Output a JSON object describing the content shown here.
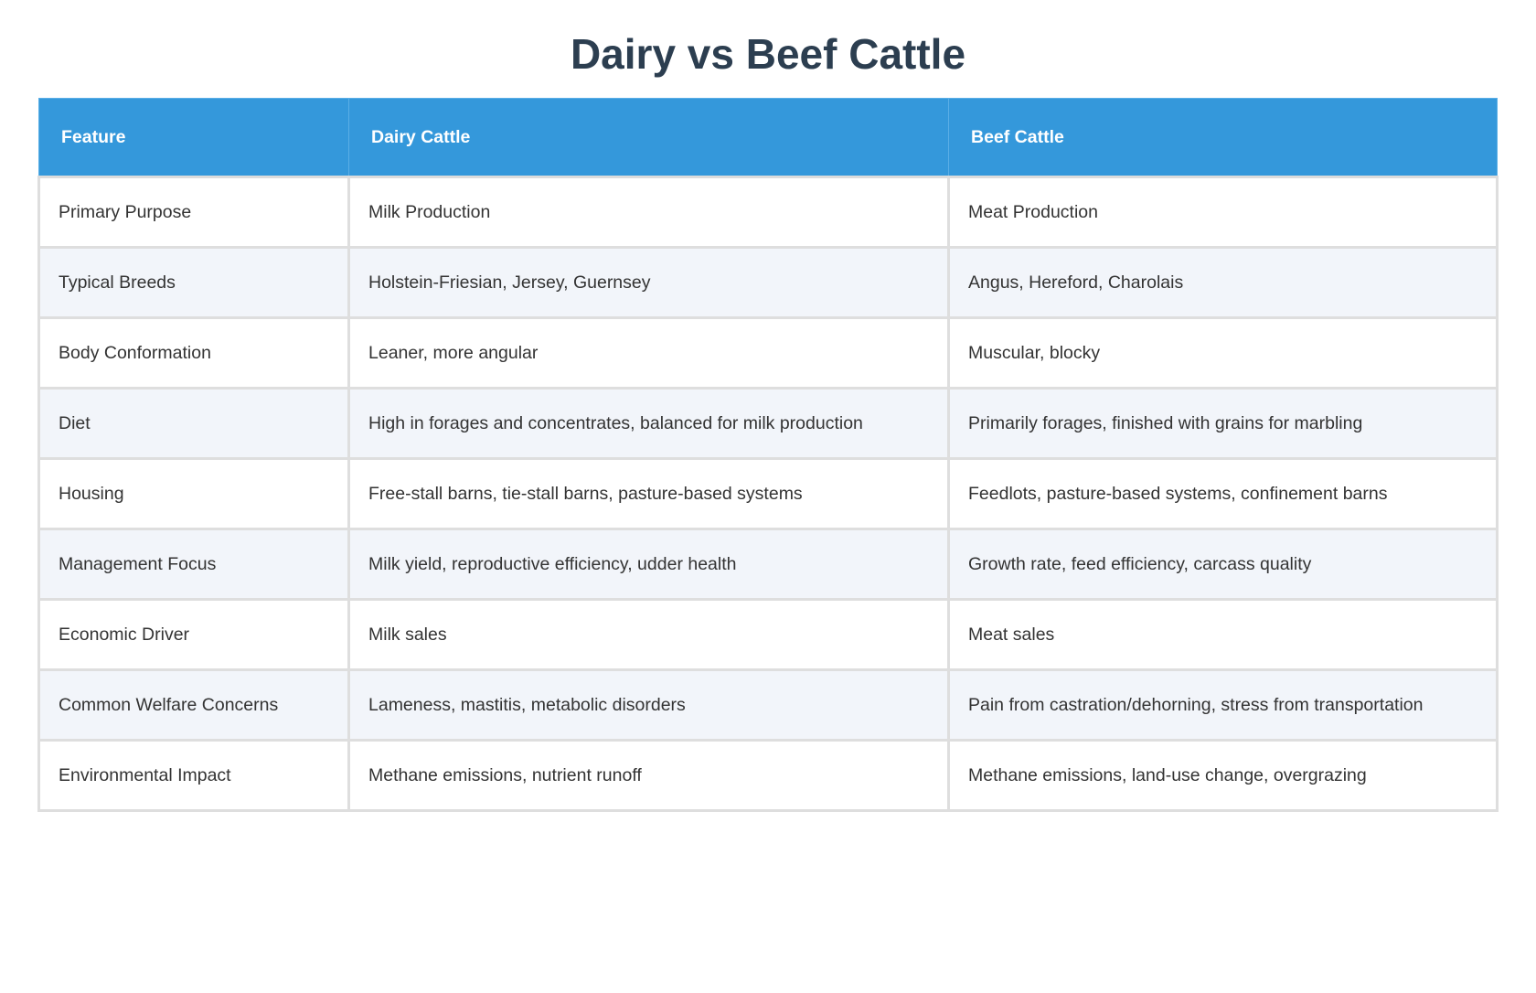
{
  "title": "Dairy vs Beef Cattle",
  "table": {
    "headers": [
      "Feature",
      "Dairy Cattle",
      "Beef Cattle"
    ],
    "rows": [
      [
        "Primary Purpose",
        "Milk Production",
        "Meat Production"
      ],
      [
        "Typical Breeds",
        "Holstein-Friesian, Jersey, Guernsey",
        "Angus, Hereford, Charolais"
      ],
      [
        "Body Conformation",
        "Leaner, more angular",
        "Muscular, blocky"
      ],
      [
        "Diet",
        "High in forages and concentrates, balanced for milk production",
        "Primarily forages, finished with grains for marbling"
      ],
      [
        "Housing",
        "Free-stall barns, tie-stall barns, pasture-based systems",
        "Feedlots, pasture-based systems, confinement barns"
      ],
      [
        "Management Focus",
        "Milk yield, reproductive efficiency, udder health",
        "Growth rate, feed efficiency, carcass quality"
      ],
      [
        "Economic Driver",
        "Milk sales",
        "Meat sales"
      ],
      [
        "Common Welfare Concerns",
        "Lameness, mastitis, metabolic disorders",
        "Pain from castration/dehorning, stress from transportation"
      ],
      [
        "Environmental Impact",
        "Methane emissions, nutrient runoff",
        "Methane emissions, land-use change, overgrazing"
      ]
    ]
  },
  "colors": {
    "header_bg": "#3498db",
    "title": "#2c3e50",
    "alt_row": "#f2f5fa"
  }
}
